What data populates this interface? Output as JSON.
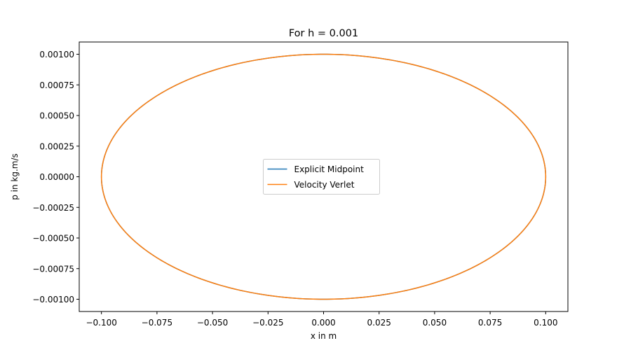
{
  "chart_data": {
    "type": "line",
    "title": "For h = 0.001",
    "xlabel": "x in m",
    "ylabel": "p in kg.m/s",
    "xlim": [
      -0.11,
      0.11
    ],
    "ylim": [
      -0.0011,
      0.0011
    ],
    "x_ticks": [
      -0.1,
      -0.075,
      -0.05,
      -0.025,
      0.0,
      0.025,
      0.05,
      0.075,
      0.1
    ],
    "x_tick_labels": [
      "−0.100",
      "−0.075",
      "−0.050",
      "−0.025",
      "0.000",
      "0.025",
      "0.050",
      "0.075",
      "0.100"
    ],
    "y_ticks": [
      0.001,
      0.00075,
      0.0005,
      0.00025,
      0.0,
      -0.00025,
      -0.0005,
      -0.00075,
      -0.001
    ],
    "y_tick_labels": [
      "0.00100",
      "0.00075",
      "0.00050",
      "0.00025",
      "0.00000",
      "−0.00025",
      "−0.00050",
      "−0.00075",
      "−0.00100"
    ],
    "grid": false,
    "legend_position": "center",
    "series": [
      {
        "name": "Explicit Midpoint",
        "color": "#1f77b4",
        "shape": "ellipse",
        "x_amplitude": 0.1,
        "p_amplitude": 0.001
      },
      {
        "name": "Velocity Verlet",
        "color": "#ff7f0e",
        "shape": "ellipse",
        "x_amplitude": 0.1,
        "p_amplitude": 0.001
      }
    ]
  }
}
